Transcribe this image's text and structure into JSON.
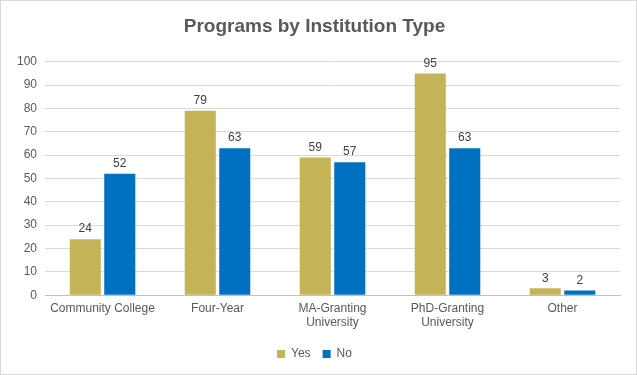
{
  "chart_data": {
    "type": "bar",
    "title": "Programs by Institution Type",
    "categories": [
      "Community College",
      "Four-Year",
      "MA-Granting University",
      "PhD-Granting University",
      "Other"
    ],
    "series": [
      {
        "name": "Yes",
        "color": "#c5b358",
        "values": [
          24,
          79,
          59,
          95,
          3
        ]
      },
      {
        "name": "No",
        "color": "#0070c0",
        "values": [
          52,
          63,
          57,
          63,
          2
        ]
      }
    ],
    "ylim": [
      0,
      100
    ],
    "yticks": [
      0,
      10,
      20,
      30,
      40,
      50,
      60,
      70,
      80,
      90,
      100
    ],
    "grid": true,
    "legend": "bottom",
    "data_labels": true
  }
}
